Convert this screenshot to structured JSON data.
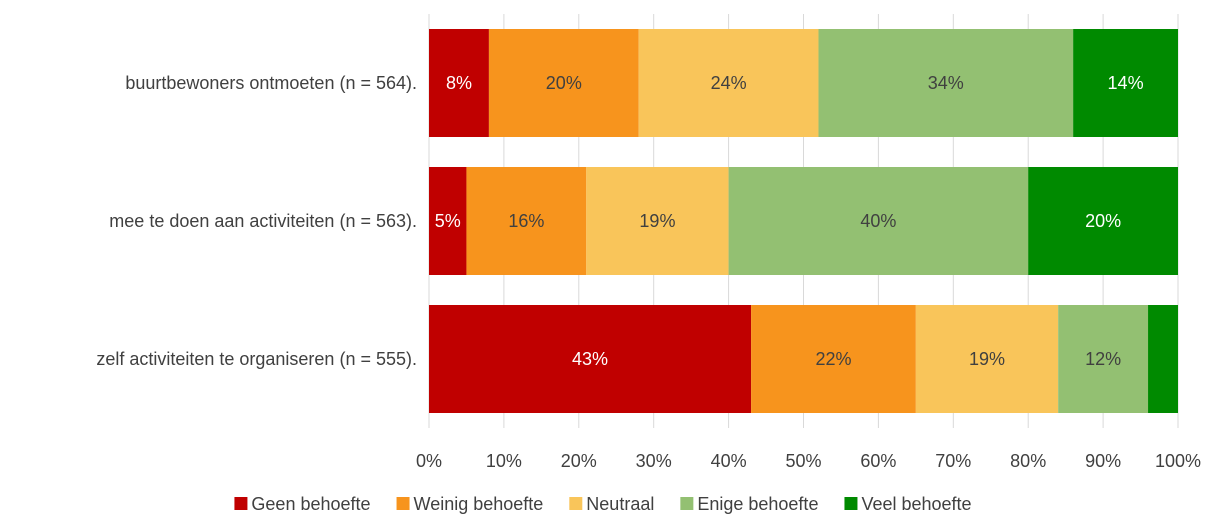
{
  "chart_data": {
    "type": "bar",
    "orientation": "horizontal",
    "stacked": "percent",
    "categories": [
      "buurtbewoners ontmoeten (n = 564).",
      "mee te doen aan activiteiten (n = 563).",
      "zelf activiteiten te organiseren (n = 555)."
    ],
    "series": [
      {
        "name": "Geen behoefte",
        "color": "#c00000",
        "label_color": "#ffffff",
        "values": [
          8,
          5,
          43
        ],
        "labels": [
          "8%",
          "5%",
          "43%"
        ]
      },
      {
        "name": "Weinig behoefte",
        "color": "#f7941d",
        "label_color": "#404040",
        "values": [
          20,
          16,
          22
        ],
        "labels": [
          "20%",
          "16%",
          "22%"
        ]
      },
      {
        "name": "Neutraal",
        "color": "#f9c55a",
        "label_color": "#404040",
        "values": [
          24,
          19,
          19
        ],
        "labels": [
          "24%",
          "19%",
          "19%"
        ]
      },
      {
        "name": "Enige behoefte",
        "color": "#93c072",
        "label_color": "#404040",
        "values": [
          34,
          40,
          12
        ],
        "labels": [
          "34%",
          "40%",
          "12%"
        ]
      },
      {
        "name": "Veel behoefte",
        "color": "#008a00",
        "label_color": "#ffffff",
        "values": [
          14,
          20,
          4
        ],
        "labels": [
          "14%",
          "20%",
          ""
        ]
      }
    ],
    "xlim": [
      0,
      100
    ],
    "xticks": [
      "0%",
      "10%",
      "20%",
      "30%",
      "40%",
      "50%",
      "60%",
      "70%",
      "80%",
      "90%",
      "100%"
    ],
    "grid": true,
    "legend_position": "bottom",
    "title": "",
    "xlabel": "",
    "ylabel": ""
  }
}
